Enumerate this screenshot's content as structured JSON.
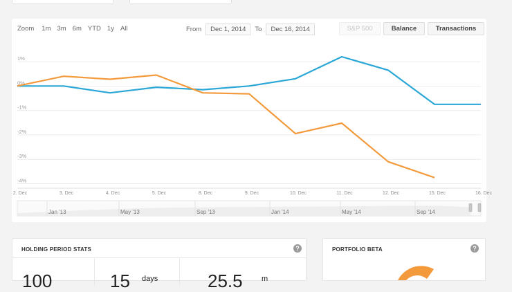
{
  "zoom": {
    "label": "Zoom",
    "options": [
      "1m",
      "3m",
      "6m",
      "YTD",
      "1y",
      "All"
    ]
  },
  "range": {
    "from_label": "From",
    "from_value": "Dec 1, 2014",
    "to_label": "To",
    "to_value": "Dec 16, 2014"
  },
  "buttons": {
    "sp500": "S&P 500",
    "balance": "Balance",
    "transactions": "Transactions"
  },
  "colors": {
    "portfolio": "#2aa7d7",
    "benchmark": "#f39a3d",
    "grid": "#ececec"
  },
  "chart_data": {
    "type": "line",
    "x": [
      "2. Dec",
      "3. Dec",
      "4. Dec",
      "5. Dec",
      "8. Dec",
      "9. Dec",
      "10. Dec",
      "11. Dec",
      "12. Dec",
      "15. Dec",
      "16. Dec"
    ],
    "y_ticks": [
      "1%",
      "0%",
      "-1%",
      "-2%",
      "-3%",
      "-4%"
    ],
    "ylim": [
      -4.1,
      1.2
    ],
    "series": [
      {
        "key": "blue",
        "values": [
          0,
          0,
          -0.28,
          -0.05,
          -0.15,
          0,
          0.3,
          1.2,
          0.65,
          -0.75,
          -0.75
        ]
      },
      {
        "key": "orange",
        "values": [
          0,
          0.4,
          0.28,
          0.45,
          -0.28,
          -0.32,
          -1.95,
          -1.52,
          -3.1,
          -3.75,
          null
        ]
      }
    ]
  },
  "navigator": {
    "labels": [
      "Jan '13",
      "May '13",
      "Sep '13",
      "Jan '14",
      "May '14",
      "Sep '14"
    ]
  },
  "cards": {
    "holding": {
      "title": "HOLDING PERIOD STATS",
      "help": "?",
      "v1": "100",
      "v2": "15",
      "v2_unit": "days",
      "v3": "25.5",
      "v3_unit": "m"
    },
    "beta": {
      "title": "PORTFOLIO BETA",
      "help": "?"
    }
  }
}
